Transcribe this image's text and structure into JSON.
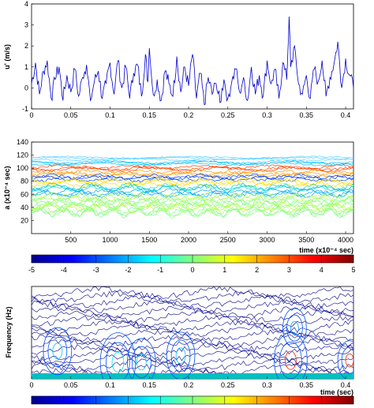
{
  "chart_data": [
    {
      "type": "line",
      "id": "velocity",
      "xlim": [
        0,
        0.41
      ],
      "ylim": [
        -1,
        4
      ],
      "x_ticks": [
        "0",
        "0.05",
        "0.1",
        "0.15",
        "0.2",
        "0.25",
        "0.3",
        "0.35",
        "0.4"
      ],
      "y_ticks": [
        "-1",
        "0",
        "1",
        "2",
        "3",
        "4"
      ],
      "ylabel": "u' (m/s)",
      "xlabel": "",
      "grid": false,
      "series": [
        {
          "color": "#0000cc",
          "x": [
            0,
            0.005,
            0.01,
            0.015,
            0.02,
            0.025,
            0.03,
            0.035,
            0.04,
            0.045,
            0.05,
            0.055,
            0.06,
            0.065,
            0.07,
            0.075,
            0.08,
            0.085,
            0.09,
            0.095,
            0.1,
            0.105,
            0.11,
            0.115,
            0.12,
            0.125,
            0.13,
            0.135,
            0.14,
            0.145,
            0.148,
            0.15,
            0.155,
            0.16,
            0.165,
            0.17,
            0.175,
            0.18,
            0.185,
            0.19,
            0.195,
            0.2,
            0.205,
            0.21,
            0.215,
            0.22,
            0.225,
            0.23,
            0.235,
            0.24,
            0.245,
            0.25,
            0.255,
            0.26,
            0.265,
            0.27,
            0.275,
            0.28,
            0.285,
            0.29,
            0.295,
            0.3,
            0.305,
            0.31,
            0.315,
            0.32,
            0.325,
            0.328,
            0.33,
            0.335,
            0.34,
            0.345,
            0.35,
            0.355,
            0.36,
            0.365,
            0.37,
            0.375,
            0.38,
            0.385,
            0.39,
            0.395,
            0.4,
            0.405,
            0.41
          ],
          "y": [
            0.2,
            1.2,
            -0.3,
            0.8,
            1.3,
            -0.5,
            0.4,
            1.0,
            -0.6,
            0.6,
            -0.2,
            0.9,
            -0.4,
            0.5,
            1.1,
            -0.6,
            0.3,
            0.8,
            -0.5,
            0.2,
            1.2,
            -0.3,
            1.3,
            0.0,
            1.0,
            -0.5,
            0.7,
            1.1,
            -0.4,
            1.6,
            0.3,
            1.9,
            -0.3,
            0.4,
            -0.6,
            0.8,
            0.2,
            -0.4,
            1.5,
            -0.2,
            1.0,
            0.1,
            1.6,
            -0.5,
            0.7,
            -0.8,
            0.5,
            -0.3,
            0.2,
            -0.7,
            0.4,
            -0.5,
            0.3,
            0.9,
            -0.2,
            0.5,
            -0.6,
            1.0,
            -0.3,
            0.6,
            -0.4,
            1.3,
            0.2,
            0.9,
            -0.5,
            1.2,
            0.4,
            3.4,
            1.0,
            2.0,
            0.2,
            -0.3,
            0.6,
            -0.5,
            0.9,
            0.3,
            1.3,
            -0.4,
            0.5,
            1.1,
            2.2,
            0.0,
            1.4,
            0.6,
            0.0
          ]
        }
      ]
    },
    {
      "type": "heatmap",
      "id": "wavelet-coefficients",
      "xlim": [
        0,
        4100
      ],
      "ylim": [
        0,
        140
      ],
      "x_ticks": [
        "500",
        "1000",
        "1500",
        "2000",
        "2500",
        "3000",
        "3500",
        "4000"
      ],
      "y_ticks": [
        "20",
        "40",
        "60",
        "80",
        "100",
        "120",
        "140"
      ],
      "ylabel": "a (x10⁻⁴ sec)",
      "xlabel": "time (x10⁻⁴ sec)",
      "style": "contour",
      "bands": [
        {
          "y": 115,
          "color": "#5ed1ff",
          "amp": 2
        },
        {
          "y": 108,
          "color": "#00c0ff",
          "amp": 3
        },
        {
          "y": 100,
          "color": "#ff4000",
          "amp": 4
        },
        {
          "y": 92,
          "color": "#ff9900",
          "amp": 5
        },
        {
          "y": 85,
          "color": "#0040ff",
          "amp": 5
        },
        {
          "y": 78,
          "color": "#ffdd00",
          "amp": 6
        },
        {
          "y": 70,
          "color": "#00d0d0",
          "amp": 6
        },
        {
          "y": 62,
          "color": "#00a8ff",
          "amp": 6
        },
        {
          "y": 55,
          "color": "#aaff55",
          "amp": 7
        },
        {
          "y": 47,
          "color": "#80ff80",
          "amp": 7
        },
        {
          "y": 40,
          "color": "#b0ff40",
          "amp": 8
        },
        {
          "y": 33,
          "color": "#80ff80",
          "amp": 8
        }
      ],
      "colorbar": {
        "range": [
          -5,
          5
        ],
        "ticks": [
          "-5",
          "-4",
          "-3",
          "-2",
          "-1",
          "0",
          "1",
          "2",
          "3",
          "4",
          "5"
        ]
      }
    },
    {
      "type": "heatmap",
      "id": "spectrogram",
      "xlim": [
        0,
        0.41
      ],
      "ylim": [
        0,
        100
      ],
      "x_ticks": [
        "0",
        "0.05",
        "0.1",
        "0.15",
        "0.2",
        "0.25",
        "0.3",
        "0.35",
        "0.4"
      ],
      "ylabel": "Frequency (Hz)",
      "xlabel": "time (sec)",
      "style": "contour",
      "hotspots": [
        {
          "x": 0.033,
          "y": 30,
          "r": 0.012,
          "color": "#00c8ff"
        },
        {
          "x": 0.11,
          "y": 18,
          "r": 0.015,
          "color": "#00e0ff"
        },
        {
          "x": 0.14,
          "y": 18,
          "r": 0.012,
          "color": "#00d0ff"
        },
        {
          "x": 0.19,
          "y": 25,
          "r": 0.012,
          "color": "#00c0ff"
        },
        {
          "x": 0.33,
          "y": 20,
          "r": 0.014,
          "color": "#ff2000"
        },
        {
          "x": 0.335,
          "y": 55,
          "r": 0.01,
          "color": "#00a0ff"
        },
        {
          "x": 0.405,
          "y": 20,
          "r": 0.01,
          "color": "#ff3000"
        }
      ],
      "colorbar": {
        "range": [
          -5,
          5
        ]
      }
    }
  ]
}
